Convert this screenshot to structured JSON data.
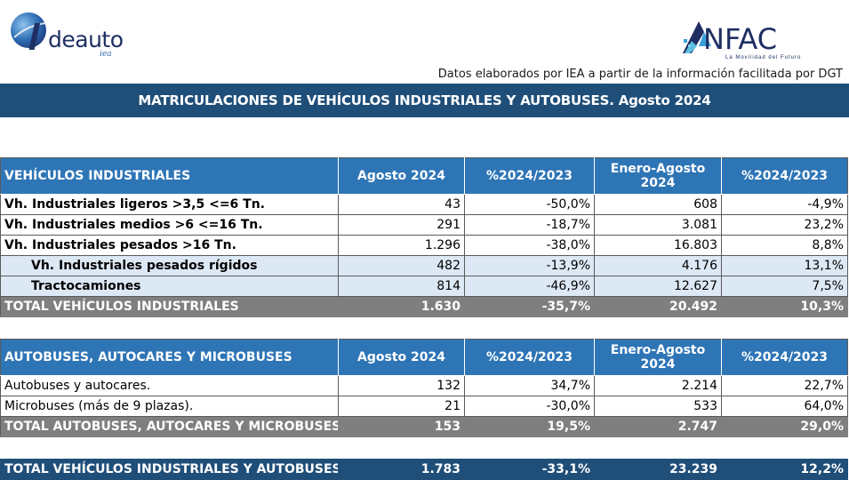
{
  "logos": {
    "left_name": "deauto",
    "left_sub": "iea",
    "right_name": "NFAC",
    "right_tagline": "La Movilidad del Futuro"
  },
  "source_note": "Datos elaborados por IEA a partir de la información facilitada por DGT",
  "title": "MATRICULACIONES DE VEHÍCULOS INDUSTRIALES Y AUTOBUSES.  Agosto 2024",
  "industrial": {
    "headers": [
      "VEHÍCULOS INDUSTRIALES",
      "Agosto 2024",
      "%2024/2023",
      "Enero-Agosto 2024",
      "%2024/2023"
    ],
    "rows": [
      {
        "label": "Vh. Industriales ligeros >3,5 <=6 Tn.",
        "aug": "43",
        "pct_aug": "-50,0%",
        "ytd": "608",
        "pct_ytd": "-4,9%"
      },
      {
        "label": "Vh. Industriales medios >6  <=16 Tn.",
        "aug": "291",
        "pct_aug": "-18,7%",
        "ytd": "3.081",
        "pct_ytd": "23,2%"
      },
      {
        "label": "Vh. Industriales  pesados >16 Tn.",
        "aug": "1.296",
        "pct_aug": "-38,0%",
        "ytd": "16.803",
        "pct_ytd": "8,8%"
      },
      {
        "label": "Vh. Industriales pesados rígidos",
        "aug": "482",
        "pct_aug": "-13,9%",
        "ytd": "4.176",
        "pct_ytd": "13,1%"
      },
      {
        "label": "Tractocamiones",
        "aug": "814",
        "pct_aug": "-46,9%",
        "ytd": "12.627",
        "pct_ytd": "7,5%"
      }
    ],
    "total": {
      "label": "TOTAL VEHÍCULOS INDUSTRIALES",
      "aug": "1.630",
      "pct_aug": "-35,7%",
      "ytd": "20.492",
      "pct_ytd": "10,3%"
    }
  },
  "buses": {
    "headers": [
      "AUTOBUSES, AUTOCARES Y MICROBUSES",
      "Agosto 2024",
      "%2024/2023",
      "Enero-Agosto 2024",
      "%2024/2023"
    ],
    "rows": [
      {
        "label": "Autobuses y autocares.",
        "aug": "132",
        "pct_aug": "34,7%",
        "ytd": "2.214",
        "pct_ytd": "22,7%"
      },
      {
        "label": "Microbuses (más de 9 plazas).",
        "aug": "21",
        "pct_aug": "-30,0%",
        "ytd": "533",
        "pct_ytd": "64,0%"
      }
    ],
    "total": {
      "label": "TOTAL AUTOBUSES, AUTOCARES Y MICROBUSES",
      "aug": "153",
      "pct_aug": "19,5%",
      "ytd": "2.747",
      "pct_ytd": "29,0%"
    }
  },
  "grand_total": {
    "label": "TOTAL VEHÍCULOS INDUSTRIALES Y AUTOBUSES",
    "aug": "1.783",
    "pct_aug": "-33,1%",
    "ytd": "23.239",
    "pct_ytd": "12,2%"
  }
}
